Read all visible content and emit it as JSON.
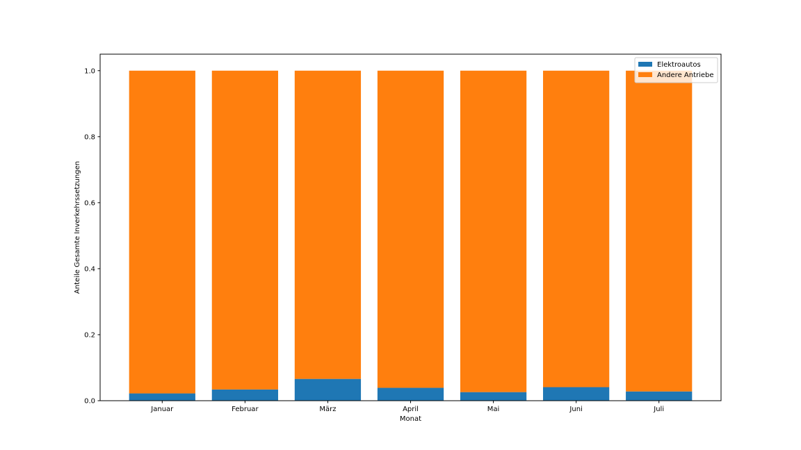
{
  "chart_data": {
    "type": "bar",
    "stacked": true,
    "categories": [
      "Januar",
      "Februar",
      "März",
      "April",
      "Mai",
      "Juni",
      "Juli"
    ],
    "series": [
      {
        "name": "Elektroautos",
        "color": "#1f77b4",
        "values": [
          0.022,
          0.034,
          0.066,
          0.039,
          0.026,
          0.041,
          0.028
        ]
      },
      {
        "name": "Andere Antriebe",
        "color": "#ff7f0e",
        "values": [
          0.978,
          0.966,
          0.934,
          0.961,
          0.974,
          0.959,
          0.972
        ]
      }
    ],
    "title": "",
    "xlabel": "Monat",
    "ylabel": "Anteile Gesamte Inverkehrssetzungen",
    "ylim": [
      0,
      1.05
    ],
    "yticks": [
      0.0,
      0.2,
      0.4,
      0.6,
      0.8,
      1.0
    ],
    "ytick_labels": [
      "0.0",
      "0.2",
      "0.4",
      "0.6",
      "0.8",
      "1.0"
    ],
    "grid": false,
    "legend_position": "top-right"
  }
}
